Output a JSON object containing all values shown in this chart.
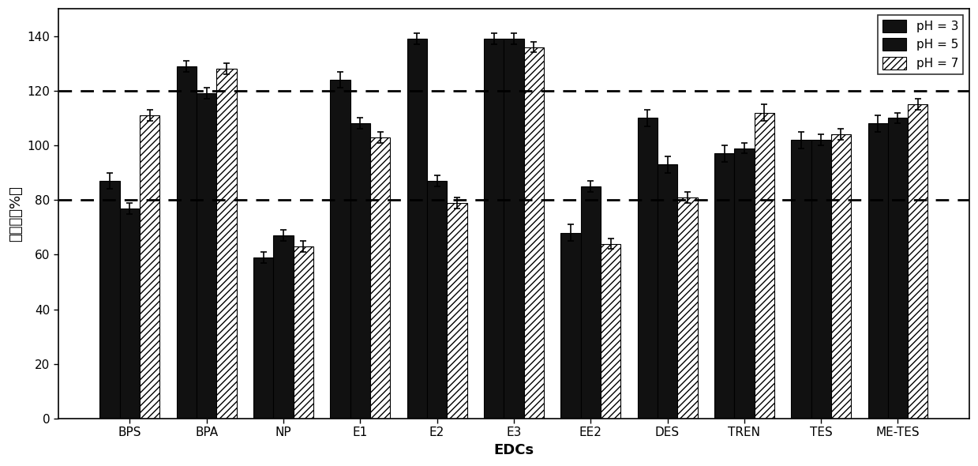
{
  "categories": [
    "BPS",
    "BPA",
    "NP",
    "E1",
    "E2",
    "E3",
    "EE2",
    "DES",
    "TREN",
    "TES",
    "ME-TES"
  ],
  "pH3_values": [
    87,
    129,
    59,
    124,
    139,
    139,
    68,
    110,
    97,
    102,
    108
  ],
  "pH5_values": [
    77,
    119,
    67,
    108,
    87,
    139,
    85,
    93,
    99,
    102,
    110
  ],
  "pH7_values": [
    111,
    128,
    63,
    103,
    79,
    136,
    64,
    81,
    112,
    104,
    115
  ],
  "pH3_errors": [
    3,
    2,
    2,
    3,
    2,
    2,
    3,
    3,
    3,
    3,
    3
  ],
  "pH5_errors": [
    2,
    2,
    2,
    2,
    2,
    2,
    2,
    3,
    2,
    2,
    2
  ],
  "pH7_errors": [
    2,
    2,
    2,
    2,
    2,
    2,
    2,
    2,
    3,
    2,
    2
  ],
  "bar_color_pH3": "#111111",
  "bar_color_pH5": "#111111",
  "bar_color_pH7_face": "#ffffff",
  "bar_color_pH7_hatch": "////",
  "hline1": 120,
  "hline2": 80,
  "ylabel": "回收率（%）",
  "xlabel": "EDCs",
  "ylim": [
    0,
    150
  ],
  "yticks": [
    0,
    20,
    40,
    60,
    80,
    100,
    120,
    140
  ],
  "legend_labels": [
    "pH = 3",
    "pH = 5",
    "pH = 7"
  ],
  "axis_fontsize": 13,
  "tick_fontsize": 11,
  "bar_width": 0.26
}
